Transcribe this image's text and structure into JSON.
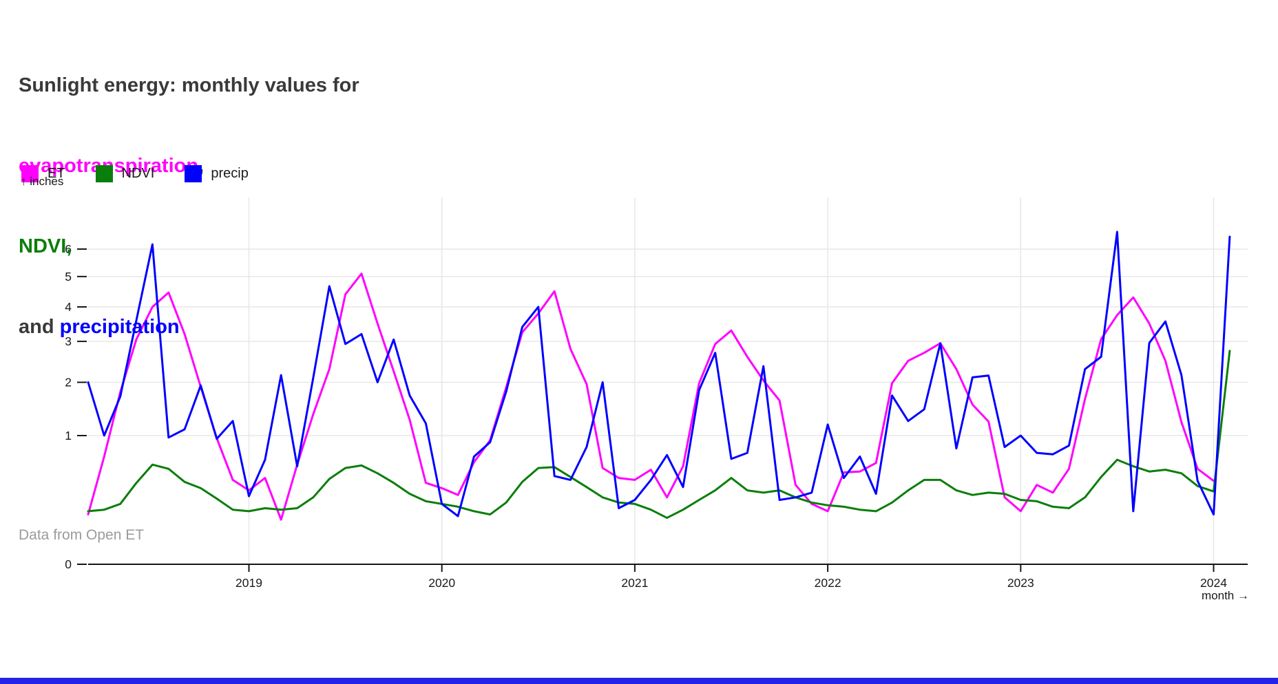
{
  "title": {
    "line1": "Sunlight energy: monthly values for",
    "line2_colored": "evapotranspiration",
    "line2_suffix": ",",
    "line3_colored": "NDVI,",
    "line4_prefix": "and ",
    "line4_colored": "precipitation"
  },
  "legend": [
    {
      "label": "ET",
      "color": "#ff00ff"
    },
    {
      "label": "NDVI",
      "color": "#0a7e0a"
    },
    {
      "label": "precip",
      "color": "#0000ff"
    }
  ],
  "y_axis": {
    "label": "↑ inches",
    "ticks": [
      0,
      1,
      2,
      3,
      4,
      5,
      6
    ],
    "scale": "sqrt"
  },
  "x_axis": {
    "label": "month →",
    "ticks": [
      "2019",
      "2020",
      "2021",
      "2022",
      "2023",
      "2024"
    ]
  },
  "footer": "Data from Open ET",
  "colors": {
    "title_text": "#3a3a3a",
    "et": "#ff00ff",
    "ndvi": "#0a7e0a",
    "precip": "#0000ff",
    "gridline": "#e7e7e7",
    "axis": "#161616",
    "tick_label": "#1a1a1a",
    "footer_text": "#9b9b9b",
    "bottom_bar": "#2323e8"
  },
  "chart_data": {
    "type": "line",
    "title": "Sunlight energy: monthly values for evapotranspiration, NDVI, and precipitation",
    "xlabel": "month",
    "ylabel": "inches",
    "y_scale": "sqrt",
    "ylim": [
      0,
      8
    ],
    "grid": true,
    "legend_position": "top-left",
    "x_monthly_start": "2018-03",
    "x_monthly_end": "2024-02",
    "months": [
      "2018-03",
      "2018-04",
      "2018-05",
      "2018-06",
      "2018-07",
      "2018-08",
      "2018-09",
      "2018-10",
      "2018-11",
      "2018-12",
      "2019-01",
      "2019-02",
      "2019-03",
      "2019-04",
      "2019-05",
      "2019-06",
      "2019-07",
      "2019-08",
      "2019-09",
      "2019-10",
      "2019-11",
      "2019-12",
      "2020-01",
      "2020-02",
      "2020-03",
      "2020-04",
      "2020-05",
      "2020-06",
      "2020-07",
      "2020-08",
      "2020-09",
      "2020-10",
      "2020-11",
      "2020-12",
      "2021-01",
      "2021-02",
      "2021-03",
      "2021-04",
      "2021-05",
      "2021-06",
      "2021-07",
      "2021-08",
      "2021-09",
      "2021-10",
      "2021-11",
      "2021-12",
      "2022-01",
      "2022-02",
      "2022-03",
      "2022-04",
      "2022-05",
      "2022-06",
      "2022-07",
      "2022-08",
      "2022-09",
      "2022-10",
      "2022-11",
      "2022-12",
      "2023-01",
      "2023-02",
      "2023-03",
      "2023-04",
      "2023-05",
      "2023-06",
      "2023-07",
      "2023-08",
      "2023-09",
      "2023-10",
      "2023-11",
      "2023-12",
      "2024-01",
      "2024-02"
    ],
    "series": [
      {
        "name": "ET",
        "color": "#ff00ff",
        "values": [
          0.15,
          0.7,
          1.79,
          3.06,
          4.0,
          4.46,
          3.2,
          1.9,
          0.96,
          0.43,
          0.33,
          0.45,
          0.12,
          0.6,
          1.36,
          2.3,
          4.4,
          5.1,
          3.5,
          2.25,
          1.26,
          0.4,
          0.35,
          0.29,
          0.63,
          0.93,
          1.89,
          3.25,
          3.8,
          4.5,
          2.8,
          1.96,
          0.56,
          0.45,
          0.43,
          0.54,
          0.27,
          0.58,
          1.98,
          2.93,
          3.3,
          2.6,
          2.04,
          1.62,
          0.38,
          0.22,
          0.17,
          0.51,
          0.52,
          0.62,
          1.98,
          2.5,
          2.7,
          2.95,
          2.3,
          1.54,
          1.23,
          0.27,
          0.17,
          0.38,
          0.31,
          0.55,
          1.65,
          3.06,
          3.75,
          4.3,
          3.5,
          2.5,
          1.22,
          0.55,
          0.42,
          null
        ]
      },
      {
        "name": "NDVI",
        "color": "#0a7e0a",
        "values": [
          0.17,
          0.18,
          0.22,
          0.4,
          0.6,
          0.55,
          0.41,
          0.35,
          0.26,
          0.18,
          0.17,
          0.19,
          0.18,
          0.19,
          0.27,
          0.44,
          0.56,
          0.59,
          0.5,
          0.4,
          0.3,
          0.24,
          0.22,
          0.2,
          0.17,
          0.15,
          0.23,
          0.41,
          0.56,
          0.57,
          0.46,
          0.36,
          0.27,
          0.23,
          0.22,
          0.18,
          0.13,
          0.18,
          0.25,
          0.33,
          0.45,
          0.33,
          0.31,
          0.33,
          0.27,
          0.23,
          0.21,
          0.2,
          0.18,
          0.17,
          0.23,
          0.33,
          0.43,
          0.43,
          0.33,
          0.29,
          0.31,
          0.3,
          0.25,
          0.24,
          0.2,
          0.19,
          0.27,
          0.46,
          0.66,
          0.58,
          0.52,
          0.54,
          0.5,
          0.37,
          0.32,
          2.75
        ]
      },
      {
        "name": "precip",
        "color": "#0000ff",
        "values": [
          2.0,
          1.0,
          1.7,
          3.6,
          6.18,
          0.97,
          1.1,
          1.93,
          0.95,
          1.24,
          0.28,
          0.66,
          2.16,
          0.58,
          2.1,
          4.67,
          2.93,
          3.2,
          2.0,
          3.05,
          1.72,
          1.2,
          0.22,
          0.14,
          0.7,
          0.9,
          1.8,
          3.4,
          4.0,
          0.47,
          0.43,
          0.83,
          2.0,
          0.19,
          0.25,
          0.43,
          0.72,
          0.36,
          1.83,
          2.7,
          0.67,
          0.75,
          2.37,
          0.25,
          0.27,
          0.31,
          1.18,
          0.45,
          0.7,
          0.3,
          1.72,
          1.24,
          1.45,
          2.95,
          0.81,
          2.11,
          2.15,
          0.83,
          1.0,
          0.75,
          0.73,
          0.85,
          2.3,
          2.6,
          6.67,
          0.17,
          2.96,
          3.56,
          2.16,
          0.42,
          0.15,
          6.48
        ]
      }
    ]
  }
}
